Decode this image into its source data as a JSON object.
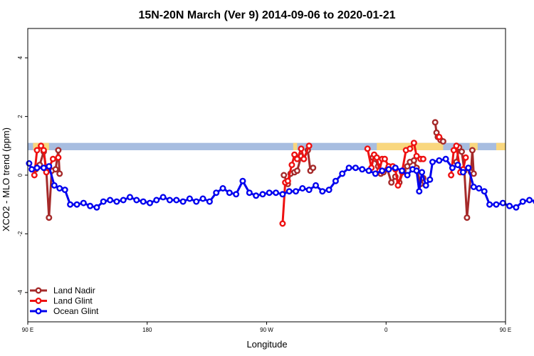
{
  "chart_data": {
    "type": "line",
    "title": "15N-20N March (Ver 9)   2014-09-06 to 2020-01-21",
    "xlabel": "Longitude",
    "ylabel": "XCO2 - MLO trend (ppm)",
    "xlim": [
      90,
      450
    ],
    "ylim": [
      -5,
      5
    ],
    "x_ticks": [
      {
        "value": 90,
        "label": "90 E"
      },
      {
        "value": 180,
        "label": "180"
      },
      {
        "value": 270,
        "label": "90 W"
      },
      {
        "value": 360,
        "label": "0"
      },
      {
        "value": 450,
        "label": "90 E"
      }
    ],
    "y_ticks": [
      {
        "value": -4,
        "label": "-4"
      },
      {
        "value": -2,
        "label": "-2"
      },
      {
        "value": 0,
        "label": "0"
      },
      {
        "value": 2,
        "label": "2"
      },
      {
        "value": 4,
        "label": "4"
      }
    ],
    "grid": false,
    "legend_position": "bottom-left",
    "band": {
      "y_range": [
        0.85,
        1.1
      ],
      "color": "#a7bde0",
      "land_color": "#f9d77e",
      "land_spans": [
        [
          94,
          106
        ],
        [
          290,
          293
        ],
        [
          353,
          403
        ],
        [
          423,
          429
        ],
        [
          443,
          456
        ]
      ]
    },
    "series": [
      {
        "name": "Land Nadir",
        "color": "#a52a2a",
        "segments": [
          [
            [
              96,
              0.2
            ],
            [
              99,
              0.35
            ],
            [
              102,
              0.8
            ],
            [
              104,
              0.15
            ],
            [
              106,
              -1.45
            ],
            [
              108,
              0.15
            ],
            [
              111,
              0.2
            ],
            [
              113,
              0.85
            ],
            [
              114,
              0.05
            ]
          ],
          [
            [
              283,
              0.0
            ],
            [
              286,
              -0.3
            ],
            [
              288,
              0.05
            ],
            [
              291,
              0.1
            ],
            [
              293,
              0.15
            ],
            [
              296,
              0.65
            ],
            [
              298,
              0.55
            ],
            [
              301,
              0.85
            ],
            [
              303,
              0.15
            ],
            [
              305,
              0.25
            ]
          ],
          [
            [
              350,
              0.6
            ],
            [
              352,
              0.55
            ],
            [
              354,
              0.3
            ],
            [
              356,
              0.05
            ],
            [
              358,
              0.1
            ],
            [
              361,
              0.2
            ],
            [
              364,
              -0.25
            ],
            [
              367,
              -0.05
            ],
            [
              370,
              -0.25
            ],
            [
              373,
              0.15
            ],
            [
              376,
              0.3
            ],
            [
              378,
              0.45
            ],
            [
              381,
              0.5
            ],
            [
              383,
              0.25
            ],
            [
              386,
              -0.3
            ],
            [
              388,
              -0.1
            ]
          ],
          [
            [
              397,
              1.8
            ],
            [
              398,
              1.45
            ],
            [
              399,
              1.3
            ],
            [
              401,
              1.2
            ],
            [
              403,
              1.15
            ]
          ],
          [
            [
              413,
              0.45
            ],
            [
              415,
              0.95
            ],
            [
              417,
              0.8
            ],
            [
              419,
              0.15
            ],
            [
              421,
              -1.45
            ],
            [
              424,
              0.1
            ],
            [
              425,
              0.85
            ],
            [
              426,
              0.05
            ]
          ]
        ]
      },
      {
        "name": "Land Glint",
        "color": "#ee1111",
        "segments": [
          [
            [
              95,
              0.0
            ],
            [
              97,
              0.85
            ],
            [
              100,
              1.0
            ],
            [
              102,
              0.85
            ],
            [
              104,
              0.1
            ],
            [
              106,
              0.25
            ],
            [
              109,
              0.55
            ],
            [
              113,
              0.6
            ]
          ],
          [
            [
              282,
              -1.65
            ],
            [
              284,
              -0.25
            ],
            [
              286,
              -0.2
            ],
            [
              289,
              0.35
            ],
            [
              291,
              0.7
            ],
            [
              293,
              0.55
            ],
            [
              296,
              0.9
            ],
            [
              298,
              0.55
            ],
            [
              302,
              1.0
            ]
          ],
          [
            [
              346,
              0.9
            ],
            [
              349,
              0.25
            ],
            [
              351,
              0.7
            ],
            [
              353,
              0.6
            ],
            [
              355,
              0.15
            ],
            [
              357,
              0.55
            ],
            [
              359,
              0.55
            ],
            [
              362,
              0.3
            ],
            [
              365,
              0.3
            ],
            [
              367,
              0.2
            ],
            [
              369,
              -0.35
            ],
            [
              372,
              0.1
            ],
            [
              375,
              0.85
            ],
            [
              378,
              0.9
            ],
            [
              381,
              1.1
            ],
            [
              383,
              0.65
            ],
            [
              386,
              0.55
            ],
            [
              388,
              0.55
            ]
          ],
          [
            [
              400,
              1.3
            ]
          ],
          [
            [
              409,
              0.0
            ],
            [
              411,
              0.85
            ],
            [
              413,
              1.0
            ],
            [
              416,
              0.1
            ],
            [
              418,
              0.2
            ],
            [
              420,
              0.6
            ]
          ]
        ]
      },
      {
        "name": "Ocean Glint",
        "color": "#0000ee",
        "segments": [
          [
            [
              91,
              0.4
            ],
            [
              93,
              0.2
            ],
            [
              97,
              0.25
            ],
            [
              102,
              0.25
            ],
            [
              106,
              0.3
            ],
            [
              110,
              -0.35
            ],
            [
              114,
              -0.45
            ],
            [
              118,
              -0.5
            ],
            [
              122,
              -1.0
            ],
            [
              127,
              -1.0
            ],
            [
              132,
              -0.95
            ],
            [
              137,
              -1.05
            ],
            [
              142,
              -1.1
            ],
            [
              147,
              -0.9
            ],
            [
              152,
              -0.85
            ],
            [
              157,
              -0.9
            ],
            [
              162,
              -0.85
            ],
            [
              167,
              -0.75
            ],
            [
              172,
              -0.85
            ],
            [
              177,
              -0.9
            ],
            [
              182,
              -0.95
            ],
            [
              187,
              -0.85
            ],
            [
              192,
              -0.75
            ],
            [
              197,
              -0.85
            ],
            [
              202,
              -0.85
            ],
            [
              207,
              -0.9
            ],
            [
              212,
              -0.8
            ],
            [
              217,
              -0.9
            ],
            [
              222,
              -0.8
            ],
            [
              227,
              -0.9
            ],
            [
              232,
              -0.6
            ],
            [
              237,
              -0.45
            ],
            [
              242,
              -0.6
            ],
            [
              247,
              -0.65
            ],
            [
              252,
              -0.2
            ],
            [
              257,
              -0.6
            ],
            [
              262,
              -0.7
            ],
            [
              267,
              -0.65
            ],
            [
              272,
              -0.6
            ],
            [
              277,
              -0.6
            ],
            [
              282,
              -0.65
            ],
            [
              287,
              -0.55
            ],
            [
              292,
              -0.55
            ],
            [
              297,
              -0.45
            ],
            [
              302,
              -0.5
            ],
            [
              307,
              -0.35
            ],
            [
              312,
              -0.55
            ],
            [
              317,
              -0.5
            ],
            [
              322,
              -0.2
            ],
            [
              327,
              0.05
            ],
            [
              332,
              0.25
            ],
            [
              337,
              0.25
            ],
            [
              342,
              0.2
            ],
            [
              347,
              0.15
            ],
            [
              352,
              0.05
            ],
            [
              357,
              0.15
            ],
            [
              362,
              0.2
            ],
            [
              367,
              0.25
            ],
            [
              372,
              0.15
            ],
            [
              376,
              0.0
            ],
            [
              380,
              0.2
            ],
            [
              383,
              0.15
            ],
            [
              385,
              -0.55
            ],
            [
              387,
              0.1
            ],
            [
              390,
              -0.35
            ],
            [
              393,
              -0.15
            ],
            [
              395,
              0.45
            ],
            [
              400,
              0.5
            ],
            [
              405,
              0.55
            ],
            [
              410,
              0.25
            ],
            [
              414,
              0.35
            ],
            [
              418,
              0.1
            ],
            [
              422,
              0.25
            ],
            [
              426,
              -0.4
            ],
            [
              430,
              -0.45
            ],
            [
              434,
              -0.55
            ],
            [
              438,
              -1.0
            ],
            [
              443,
              -1.0
            ],
            [
              448,
              -0.95
            ],
            [
              453,
              -1.05
            ],
            [
              458,
              -1.1
            ],
            [
              463,
              -0.9
            ],
            [
              468,
              -0.85
            ],
            [
              473,
              -0.9
            ],
            [
              478,
              -0.85
            ],
            [
              483,
              -0.75
            ]
          ]
        ]
      }
    ]
  }
}
